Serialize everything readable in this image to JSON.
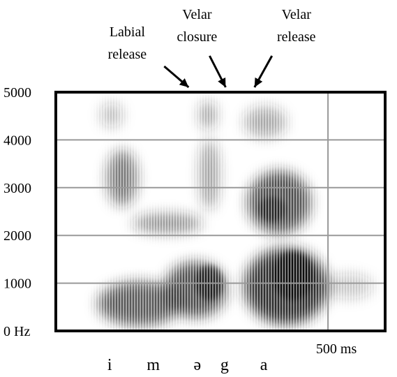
{
  "chart_data": {
    "type": "spectrogram",
    "ylim": [
      0,
      5000
    ],
    "yticks": [
      {
        "value": 0,
        "label": "0 Hz"
      },
      1000,
      2000,
      3000,
      4000,
      5000
    ],
    "xlim": [
      0,
      605
    ],
    "xticks": [
      {
        "value": 500,
        "label": "500 ms"
      }
    ],
    "grid": true,
    "annotations": [
      {
        "lines": [
          "Labial",
          "release"
        ],
        "x": 244
      },
      {
        "lines": [
          "Velar",
          "closure"
        ],
        "x": 312
      },
      {
        "lines": [
          "Velar",
          "release"
        ],
        "x": 365
      }
    ],
    "segments": [
      {
        "label": "i",
        "x": 99
      },
      {
        "label": "m",
        "x": 179
      },
      {
        "label": "ə",
        "x": 260
      },
      {
        "label": "g",
        "x": 310
      },
      {
        "label": "a",
        "x": 382
      }
    ]
  }
}
